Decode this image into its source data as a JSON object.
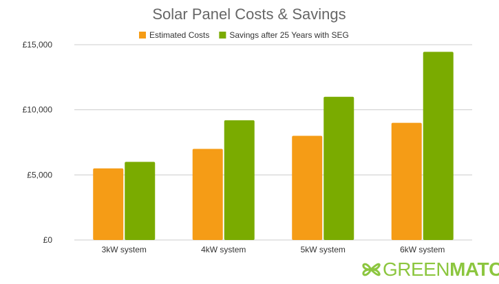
{
  "chart_data": {
    "type": "bar",
    "title": "Solar Panel Costs & Savings",
    "categories": [
      "3kW system",
      "4kW system",
      "5kW system",
      "6kW system"
    ],
    "series": [
      {
        "name": "Estimated Costs",
        "color": "#f59c16",
        "values": [
          5500,
          7000,
          8000,
          9000
        ]
      },
      {
        "name": "Savings after 25 Years with SEG",
        "color": "#7aab00",
        "values": [
          6000,
          9200,
          11000,
          14450
        ]
      }
    ],
    "yticks": [
      0,
      5000,
      10000,
      15000
    ],
    "ytick_labels": [
      "£0",
      "£5,000",
      "£10,000",
      "£15,000"
    ],
    "ylim": [
      0,
      15000
    ],
    "grid": true,
    "legend_position": "top"
  },
  "logo": {
    "light": "GREEN",
    "bold": "MATCH",
    "color": "#8cc63f"
  }
}
